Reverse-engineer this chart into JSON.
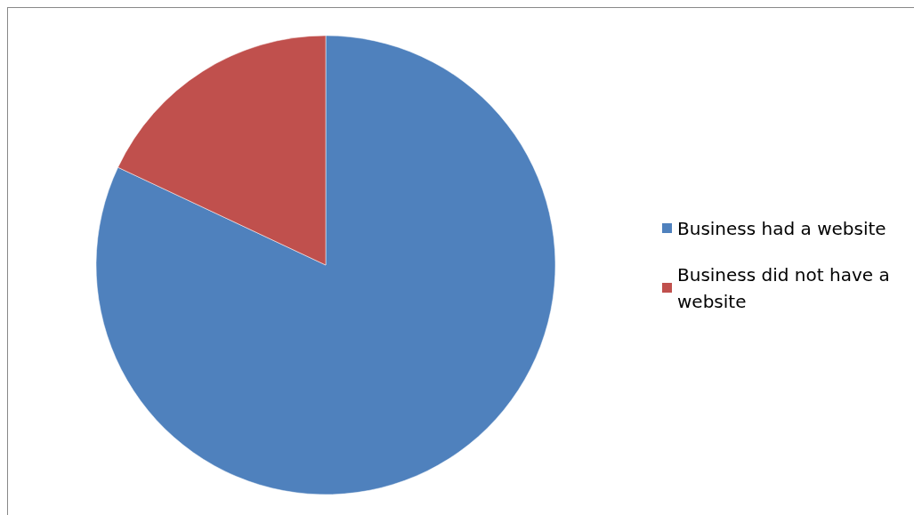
{
  "chart_data": {
    "type": "pie",
    "categories": [
      "Business had a website",
      "Business did not have a website"
    ],
    "values": [
      82,
      18
    ],
    "colors": [
      "#4f81bd",
      "#c0504d"
    ],
    "legend": "right"
  }
}
